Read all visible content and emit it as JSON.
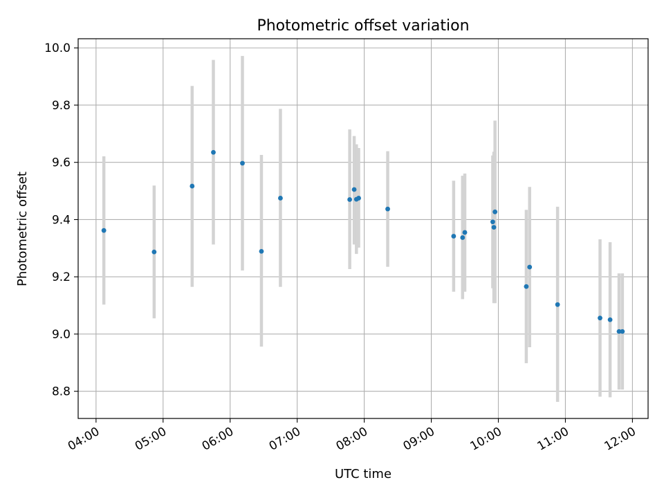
{
  "chart_data": {
    "type": "scatter",
    "title": "Photometric offset variation",
    "xlabel": "UTC time",
    "ylabel": "Photometric offset",
    "x_ticks": [
      "04:00",
      "05:00",
      "06:00",
      "07:00",
      "08:00",
      "09:00",
      "10:00",
      "11:00",
      "12:00"
    ],
    "y_ticks": [
      "8.8",
      "9.0",
      "9.2",
      "9.4",
      "9.6",
      "9.8",
      "10.0"
    ],
    "xlim": [
      "03:44",
      "12:14"
    ],
    "ylim": [
      8.705,
      10.032
    ],
    "grid": true,
    "colors": {
      "points": "#1f77b4",
      "errorbars": "#d3d3d3",
      "grid": "#b0b0b0"
    },
    "points": [
      {
        "t": "04:07",
        "y": 9.362,
        "err_low": 9.103,
        "err_high": 9.621
      },
      {
        "t": "04:52",
        "y": 9.287,
        "err_low": 9.055,
        "err_high": 9.519
      },
      {
        "t": "05:26",
        "y": 9.517,
        "err_low": 9.165,
        "err_high": 9.867
      },
      {
        "t": "05:45",
        "y": 9.635,
        "err_low": 9.313,
        "err_high": 9.958
      },
      {
        "t": "06:11",
        "y": 9.597,
        "err_low": 9.222,
        "err_high": 9.972
      },
      {
        "t": "06:28",
        "y": 9.289,
        "err_low": 8.956,
        "err_high": 9.626
      },
      {
        "t": "06:45",
        "y": 9.475,
        "err_low": 9.165,
        "err_high": 9.787
      },
      {
        "t": "07:47",
        "y": 9.47,
        "err_low": 9.227,
        "err_high": 9.715
      },
      {
        "t": "07:51",
        "y": 9.505,
        "err_low": 9.313,
        "err_high": 9.692
      },
      {
        "t": "07:53",
        "y": 9.471,
        "err_low": 9.28,
        "err_high": 9.663
      },
      {
        "t": "07:55",
        "y": 9.475,
        "err_low": 9.302,
        "err_high": 9.65
      },
      {
        "t": "08:21",
        "y": 9.437,
        "err_low": 9.235,
        "err_high": 9.639
      },
      {
        "t": "09:20",
        "y": 9.342,
        "err_low": 9.148,
        "err_high": 9.536
      },
      {
        "t": "09:28",
        "y": 9.337,
        "err_low": 9.122,
        "err_high": 9.553
      },
      {
        "t": "09:30",
        "y": 9.355,
        "err_low": 9.148,
        "err_high": 9.561
      },
      {
        "t": "09:55",
        "y": 9.392,
        "err_low": 9.16,
        "err_high": 9.624
      },
      {
        "t": "09:56",
        "y": 9.373,
        "err_low": 9.108,
        "err_high": 9.637
      },
      {
        "t": "09:57",
        "y": 9.427,
        "err_low": 9.108,
        "err_high": 9.746
      },
      {
        "t": "10:25",
        "y": 9.166,
        "err_low": 8.898,
        "err_high": 9.434
      },
      {
        "t": "10:28",
        "y": 9.234,
        "err_low": 8.954,
        "err_high": 9.514
      },
      {
        "t": "10:53",
        "y": 9.103,
        "err_low": 8.763,
        "err_high": 9.445
      },
      {
        "t": "11:31",
        "y": 9.056,
        "err_low": 8.781,
        "err_high": 9.331
      },
      {
        "t": "11:40",
        "y": 9.05,
        "err_low": 8.779,
        "err_high": 9.321
      },
      {
        "t": "11:48",
        "y": 9.009,
        "err_low": 8.806,
        "err_high": 9.212
      },
      {
        "t": "11:51",
        "y": 9.009,
        "err_low": 8.806,
        "err_high": 9.212
      }
    ]
  }
}
